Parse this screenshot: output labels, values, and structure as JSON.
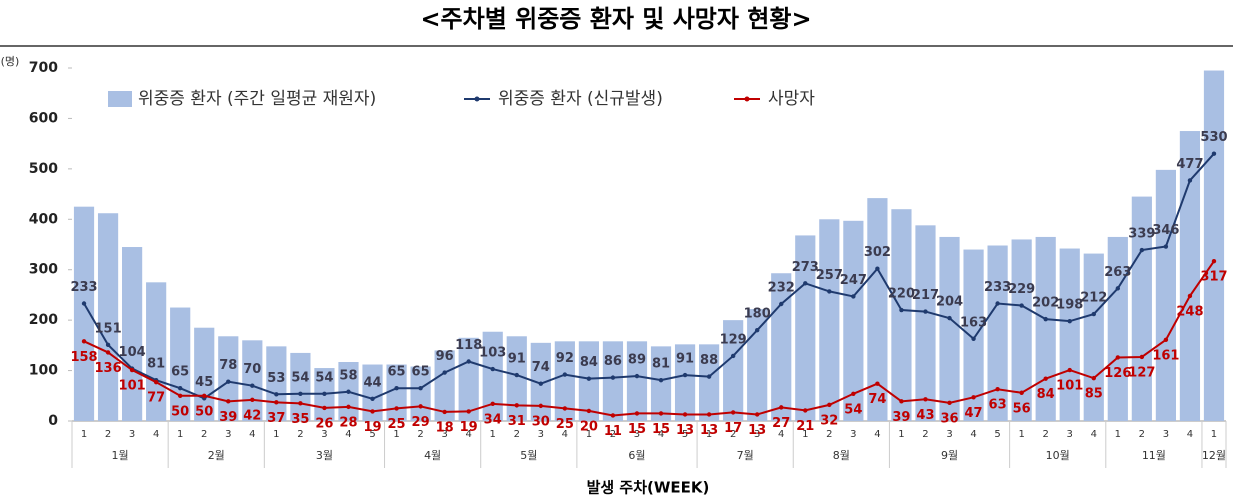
{
  "chart_data": {
    "type": "bar-line",
    "title": "<주차별 위중증 환자 및 사망자 현황>",
    "unit_label": "(명)",
    "x_label": "발생 주차(WEEK)",
    "groups": [
      {
        "label": "1월",
        "weeks": [
          "1",
          "2",
          "3",
          "4"
        ]
      },
      {
        "label": "2월",
        "weeks": [
          "1",
          "2",
          "3",
          "4"
        ]
      },
      {
        "label": "3월",
        "weeks": [
          "1",
          "2",
          "3",
          "4",
          "5"
        ]
      },
      {
        "label": "4월",
        "weeks": [
          "1",
          "2",
          "3",
          "4"
        ]
      },
      {
        "label": "5월",
        "weeks": [
          "1",
          "2",
          "3",
          "4"
        ]
      },
      {
        "label": "6월",
        "weeks": [
          "1",
          "2",
          "3",
          "4",
          "5"
        ]
      },
      {
        "label": "7월",
        "weeks": [
          "1",
          "2",
          "3",
          "4"
        ]
      },
      {
        "label": "8월",
        "weeks": [
          "1",
          "2",
          "3",
          "4"
        ]
      },
      {
        "label": "9월",
        "weeks": [
          "1",
          "2",
          "3",
          "4",
          "5"
        ]
      },
      {
        "label": "10월",
        "weeks": [
          "1",
          "2",
          "3",
          "4"
        ]
      },
      {
        "label": "11월",
        "weeks": [
          "1",
          "2",
          "3",
          "4"
        ]
      },
      {
        "label": "12월",
        "weeks": [
          "1"
        ]
      }
    ],
    "ylim": [
      0,
      700
    ],
    "yticks": [
      0,
      100,
      200,
      300,
      400,
      500,
      600,
      700
    ],
    "series": [
      {
        "name": "위중증 환자 (주간 일평균 재원자)",
        "kind": "bar",
        "color": "#a9bfe3",
        "values": [
          425,
          412,
          345,
          275,
          225,
          185,
          168,
          160,
          148,
          135,
          105,
          117,
          112,
          112,
          108,
          140,
          165,
          177,
          168,
          155,
          158,
          158,
          158,
          158,
          148,
          152,
          152,
          200,
          222,
          293,
          368,
          400,
          397,
          442,
          420,
          388,
          365,
          340,
          348,
          360,
          365,
          342,
          332,
          365,
          445,
          498,
          575,
          695
        ]
      },
      {
        "name": "위중증 환자 (신규발생)",
        "kind": "line",
        "color": "#1f3a6e",
        "labels": "above",
        "values": [
          233,
          151,
          104,
          81,
          65,
          45,
          78,
          70,
          53,
          54,
          54,
          58,
          44,
          65,
          65,
          96,
          118,
          103,
          91,
          74,
          92,
          84,
          86,
          89,
          81,
          91,
          88,
          129,
          180,
          232,
          273,
          257,
          247,
          302,
          220,
          217,
          204,
          163,
          233,
          229,
          202,
          198,
          212,
          263,
          339,
          346,
          477,
          530
        ]
      },
      {
        "name": "사망자",
        "kind": "line",
        "color": "#c00000",
        "labels": "below",
        "values": [
          158,
          136,
          101,
          77,
          50,
          50,
          39,
          42,
          37,
          35,
          26,
          28,
          19,
          25,
          29,
          18,
          19,
          34,
          31,
          30,
          25,
          20,
          11,
          15,
          15,
          13,
          13,
          17,
          13,
          27,
          21,
          32,
          54,
          74,
          39,
          43,
          36,
          47,
          63,
          56,
          84,
          101,
          85,
          126,
          127,
          161,
          248,
          317
        ]
      }
    ]
  }
}
